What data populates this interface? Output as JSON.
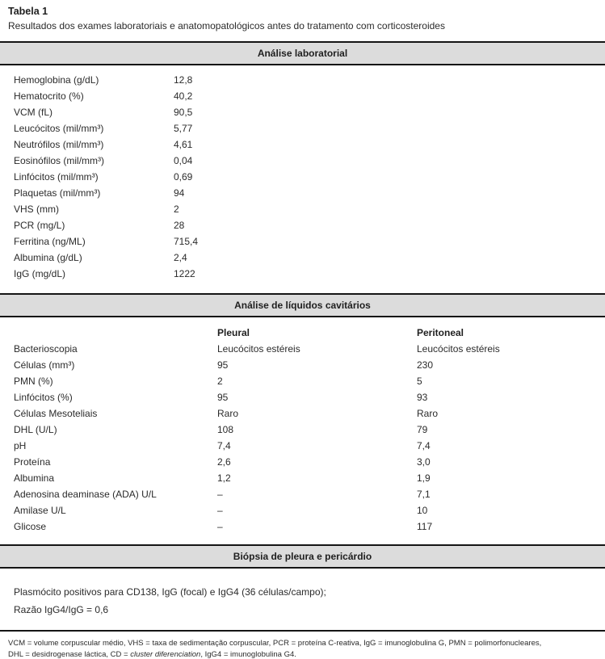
{
  "title": "Tabela 1",
  "subtitle": "Resultados dos exames laboratoriais e anatomopatológicos antes do tratamento com corticosteroides",
  "sections": {
    "lab": {
      "header": "Análise laboratorial",
      "rows": [
        {
          "label": "Hemoglobina (g/dL)",
          "value": "12,8"
        },
        {
          "label": "Hematocrito (%)",
          "value": "40,2"
        },
        {
          "label": "VCM (fL)",
          "value": "90,5"
        },
        {
          "label": "Leucócitos (mil/mm³)",
          "value": "5,77"
        },
        {
          "label": "Neutrófilos (mil/mm³)",
          "value": "4,61"
        },
        {
          "label": "Eosinófilos (mil/mm³)",
          "value": "0,04"
        },
        {
          "label": "Linfócitos (mil/mm³)",
          "value": "0,69"
        },
        {
          "label": "Plaquetas (mil/mm³)",
          "value": "94"
        },
        {
          "label": "VHS (mm)",
          "value": "2"
        },
        {
          "label": "PCR (mg/L)",
          "value": "28"
        },
        {
          "label": "Ferritina (ng/ML)",
          "value": "715,4"
        },
        {
          "label": "Albumina (g/dL)",
          "value": "2,4"
        },
        {
          "label": "IgG (mg/dL)",
          "value": "1222"
        }
      ]
    },
    "fluids": {
      "header": "Análise de líquidos cavitários",
      "col1": "Pleural",
      "col2": "Peritoneal",
      "rows": [
        {
          "label": "Bacterioscopia",
          "pleural": "Leucócitos estéreis",
          "peritoneal": "Leucócitos estéreis"
        },
        {
          "label": "Células (mm³)",
          "pleural": "95",
          "peritoneal": "230"
        },
        {
          "label": "PMN (%)",
          "pleural": "2",
          "peritoneal": "5"
        },
        {
          "label": "Linfócitos (%)",
          "pleural": "95",
          "peritoneal": "93"
        },
        {
          "label": "Células Mesoteliais",
          "pleural": "Raro",
          "peritoneal": "Raro"
        },
        {
          "label": "DHL (U/L)",
          "pleural": "108",
          "peritoneal": "79"
        },
        {
          "label": "pH",
          "pleural": "7,4",
          "peritoneal": "7,4"
        },
        {
          "label": "Proteína",
          "pleural": "2,6",
          "peritoneal": "3,0"
        },
        {
          "label": "Albumina",
          "pleural": "1,2",
          "peritoneal": "1,9"
        },
        {
          "label": "Adenosina deaminase (ADA) U/L",
          "pleural": "–",
          "peritoneal": "7,1"
        },
        {
          "label": "Amilase U/L",
          "pleural": "–",
          "peritoneal": "10"
        },
        {
          "label": "Glicose",
          "pleural": "–",
          "peritoneal": "117"
        }
      ]
    },
    "biopsy": {
      "header": "Biópsia de pleura e pericárdio",
      "line1": "Plasmócito positivos para CD138, IgG (focal) e IgG4 (36 células/campo);",
      "line2": "Razão IgG4/IgG = 0,6"
    }
  },
  "footnote": {
    "line1": "VCM = volume corpuscular médio, VHS = taxa de sedimentação corpuscular, PCR = proteína C-reativa, IgG = imunoglobulina G, PMN = polimorfonucleares,",
    "line2_pre": "DHL = desidrogenase láctica, CD = ",
    "line2_italic": "cluster diferenciation",
    "line2_post": ", IgG4 = imunoglobulina G4."
  },
  "colors": {
    "band_bg": "#dcdcdc",
    "rule": "#151515",
    "text": "#2b2b2b"
  }
}
